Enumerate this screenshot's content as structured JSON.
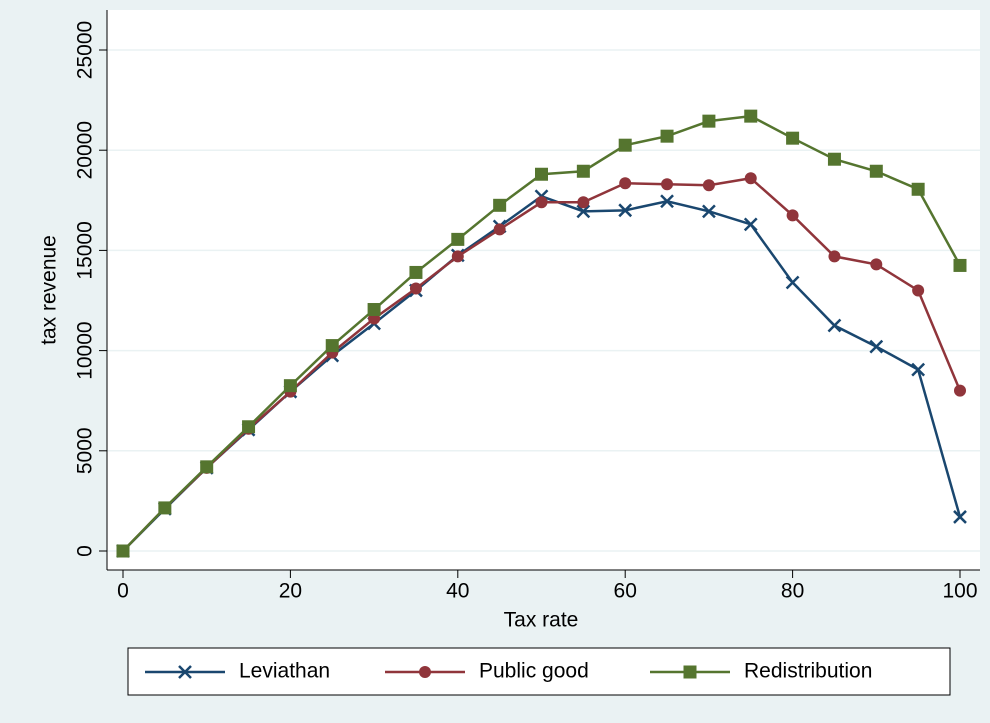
{
  "chart_data": {
    "type": "line",
    "x_label": "Tax rate",
    "y_label": "tax revenue",
    "x": [
      0,
      5,
      10,
      15,
      20,
      25,
      30,
      35,
      40,
      45,
      50,
      55,
      60,
      65,
      70,
      75,
      80,
      85,
      90,
      95,
      100
    ],
    "series": [
      {
        "name": "Leviathan",
        "color": "#1a476f",
        "marker": "x",
        "values": [
          0,
          2100,
          4150,
          6050,
          7950,
          9750,
          11350,
          13000,
          14750,
          16200,
          17700,
          16950,
          17000,
          17450,
          16950,
          16300,
          13400,
          11250,
          10200,
          9050,
          1700
        ]
      },
      {
        "name": "Public good",
        "color": "#90353b",
        "marker": "circle",
        "values": [
          0,
          2150,
          4150,
          6100,
          7950,
          9900,
          11600,
          13100,
          14700,
          16050,
          17400,
          17400,
          18350,
          18300,
          18250,
          18600,
          16750,
          14700,
          14300,
          13000,
          8000
        ]
      },
      {
        "name": "Redistribution",
        "color": "#55752f",
        "marker": "square",
        "values": [
          0,
          2150,
          4200,
          6200,
          8250,
          10250,
          12050,
          13900,
          15550,
          17250,
          18800,
          18950,
          20250,
          20700,
          21450,
          21700,
          20600,
          19550,
          18950,
          18050,
          14250
        ]
      }
    ],
    "xlim": [
      0,
      100
    ],
    "xticks": [
      0,
      20,
      40,
      60,
      80,
      100
    ],
    "ylim": [
      0,
      25000
    ],
    "yticks": [
      0,
      5000,
      10000,
      15000,
      20000,
      25000
    ],
    "grid": true,
    "legend": "bottom"
  }
}
